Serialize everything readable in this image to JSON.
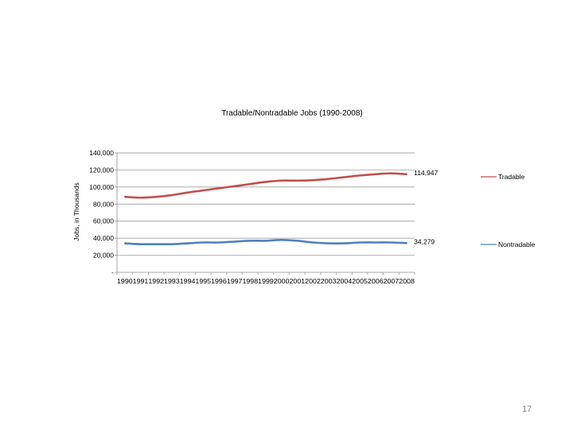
{
  "page_number": "17",
  "chart_data": {
    "type": "line",
    "title": "Tradable/Nontradable Jobs (1990-2008)",
    "xlabel": "",
    "ylabel": "Jobs, in Thousands",
    "x": [
      "1990",
      "1991",
      "1992",
      "1993",
      "1994",
      "1995",
      "1996",
      "1997",
      "1998",
      "1999",
      "2000",
      "2001",
      "2002",
      "2003",
      "2004",
      "2005",
      "2006",
      "2007",
      "2008"
    ],
    "ylim": [
      0,
      140000
    ],
    "yticks": [
      0,
      20000,
      40000,
      60000,
      80000,
      100000,
      120000,
      140000
    ],
    "ytick_labels": [
      "-",
      "20,000",
      "40,000",
      "60,000",
      "80,000",
      "100,000",
      "120,000",
      "140,000"
    ],
    "grid": true,
    "legend_position": "right",
    "series": [
      {
        "name": "Tradable",
        "color": "#c0504d",
        "values": [
          88500,
          87500,
          88500,
          90500,
          93500,
          96000,
          98500,
          101000,
          103500,
          106000,
          107500,
          107500,
          108000,
          109500,
          111500,
          113500,
          115000,
          116000,
          114947
        ],
        "end_label": "114,947"
      },
      {
        "name": "Nontradable",
        "color": "#4f81bd",
        "values": [
          34000,
          33000,
          33000,
          33000,
          34000,
          35000,
          35000,
          36000,
          37000,
          37000,
          38000,
          37000,
          35000,
          34000,
          34000,
          35000,
          35000,
          35000,
          34279
        ],
        "end_label": "34,279"
      }
    ]
  }
}
